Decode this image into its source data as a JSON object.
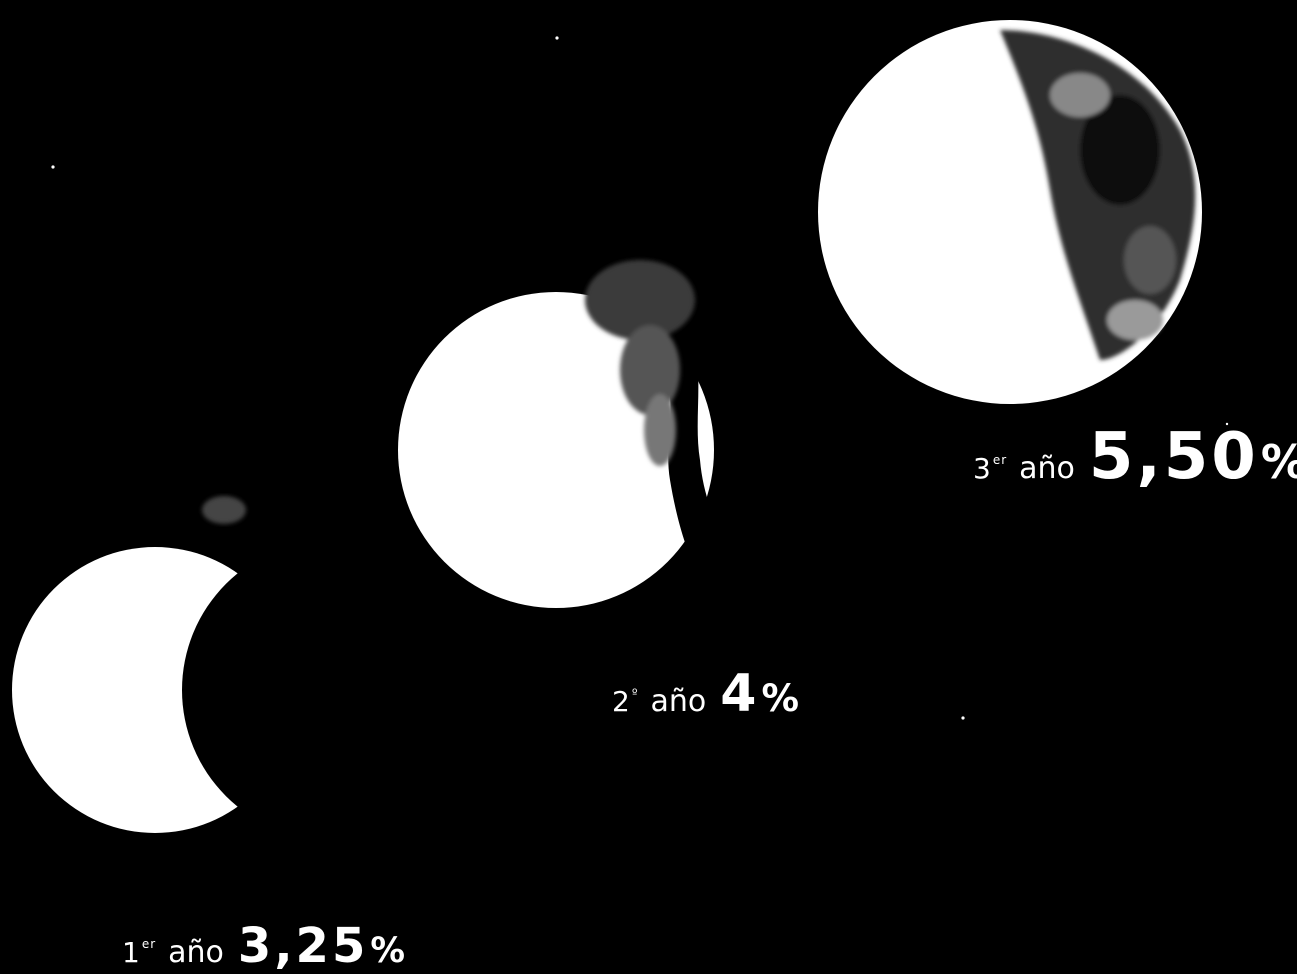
{
  "phases": [
    {
      "ordinal": "1",
      "suffix": "er",
      "word": "año",
      "rate_number": "3,25",
      "rate_unit": "%"
    },
    {
      "ordinal": "2",
      "suffix": "º",
      "word": "año",
      "rate_number": "4",
      "rate_unit": "%"
    },
    {
      "ordinal": "3",
      "suffix": "er",
      "word": "año",
      "rate_number": "5,50",
      "rate_unit": "%"
    }
  ],
  "colors": {
    "background": "#000000",
    "moon": "#ffffff",
    "shadow": "#000000"
  }
}
